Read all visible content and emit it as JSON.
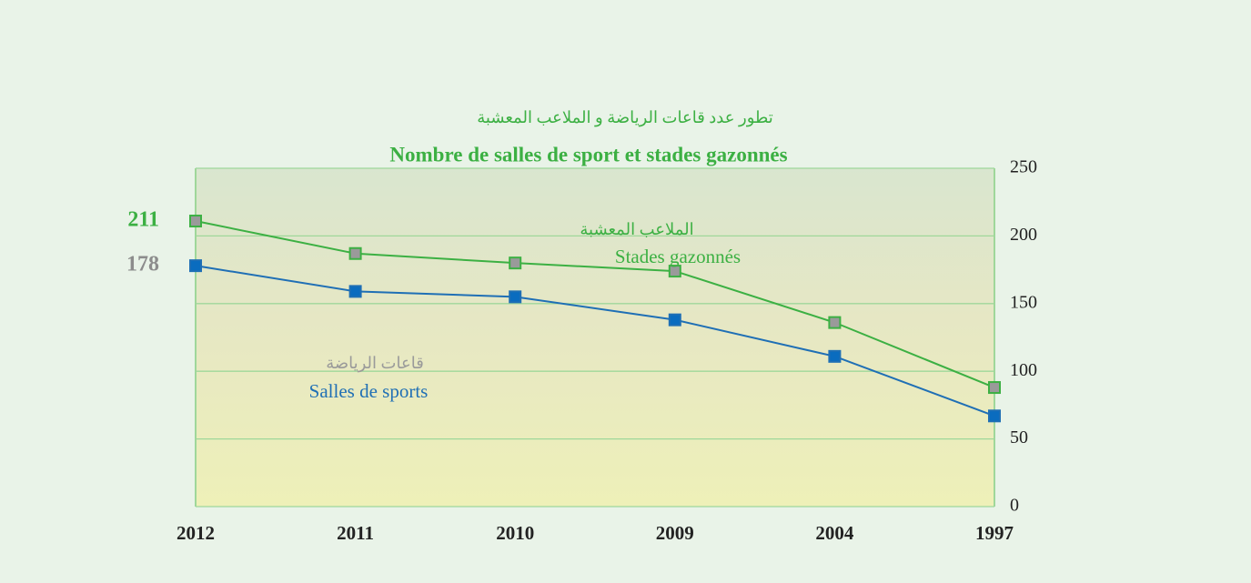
{
  "chart_data": {
    "type": "line",
    "title_ar": "تطور عدد قاعات الرياضة و الملاعب المعشبة",
    "title": "Nombre de salles de sport et stades gazonnés",
    "categories": [
      "2012",
      "2011",
      "2010",
      "2009",
      "2004",
      "1997"
    ],
    "series": [
      {
        "name": "Stades gazonnés",
        "name_ar": "الملاعب المعشبة",
        "color": "#3cb043",
        "marker_color": "#9a9a9a",
        "label_color": "#3cb043",
        "values": [
          211,
          187,
          180,
          174,
          136,
          88
        ],
        "value_labels": [
          "211",
          null,
          null,
          null,
          null,
          null
        ]
      },
      {
        "name": "Salles de sports",
        "name_ar": "قاعات الرياضة",
        "color": "#1f6fb5",
        "marker_color": "#0a6cbf",
        "label_color": "#8c8c8c",
        "values": [
          178,
          159,
          155,
          138,
          111,
          67
        ],
        "value_labels": [
          "178",
          null,
          null,
          null,
          null,
          null
        ]
      }
    ],
    "ylim": [
      0,
      250
    ],
    "yticks": [
      0,
      50,
      100,
      150,
      200,
      250
    ],
    "grid": true
  }
}
